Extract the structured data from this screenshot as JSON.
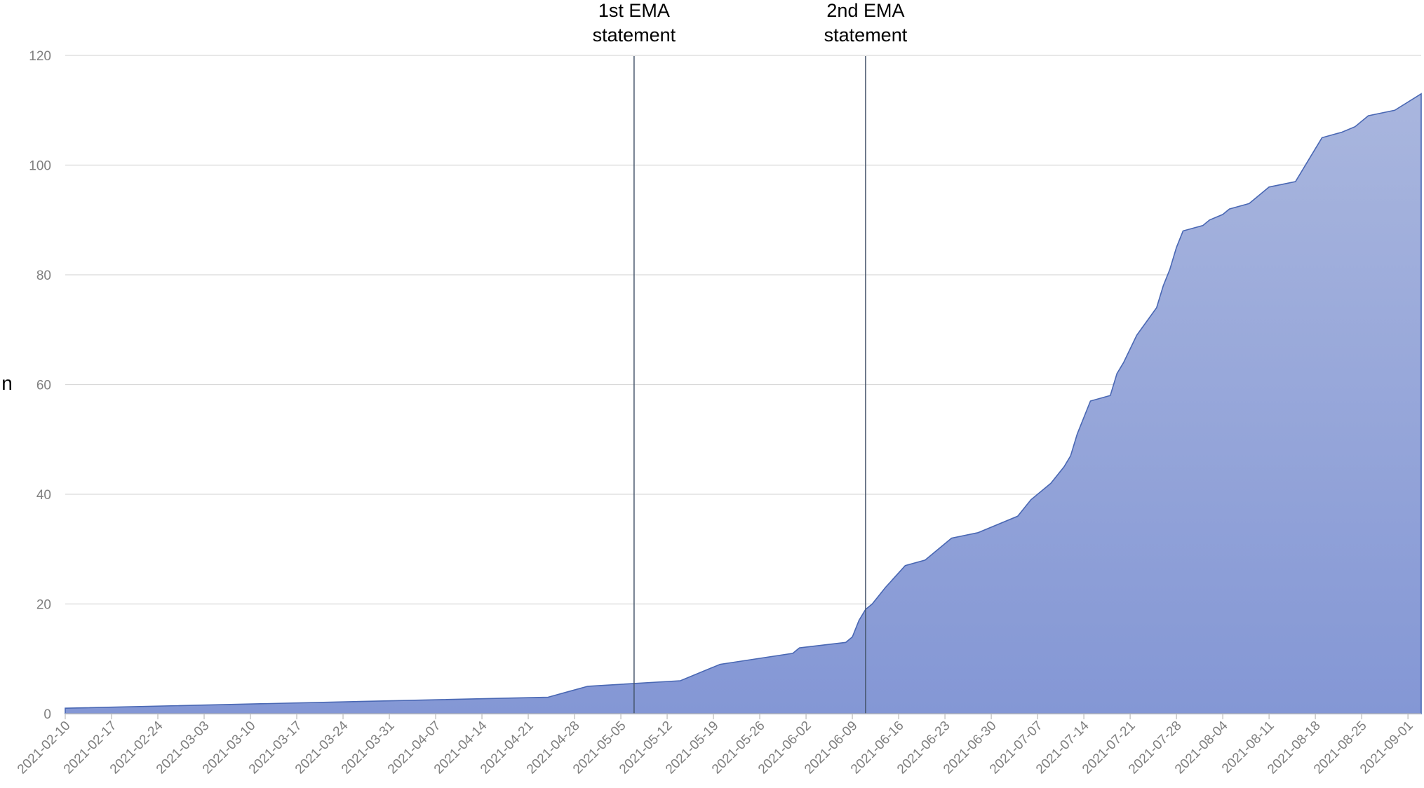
{
  "chart_data": {
    "type": "area",
    "title": "",
    "xlabel": "",
    "ylabel": "n",
    "ylim": [
      0,
      120
    ],
    "yticks": [
      0,
      20,
      40,
      60,
      80,
      100,
      120
    ],
    "grid": true,
    "legend": "none",
    "colors": {
      "fill_top": "#a9b6de",
      "fill_bottom": "#8497d5",
      "line": "#4a68b4",
      "annotation_line": "#44546a",
      "gridline": "#d9d9d9",
      "tick_label": "#7f7f7f"
    },
    "x_ticks": [
      "2021-02-10",
      "2021-02-17",
      "2021-02-24",
      "2021-03-03",
      "2021-03-10",
      "2021-03-17",
      "2021-03-24",
      "2021-03-31",
      "2021-04-07",
      "2021-04-14",
      "2021-04-21",
      "2021-04-28",
      "2021-05-05",
      "2021-05-12",
      "2021-05-19",
      "2021-05-26",
      "2021-06-02",
      "2021-06-09",
      "2021-06-16",
      "2021-06-23",
      "2021-06-30",
      "2021-07-07",
      "2021-07-14",
      "2021-07-21",
      "2021-07-28",
      "2021-08-04",
      "2021-08-11",
      "2021-08-18",
      "2021-08-25",
      "2021-09-01"
    ],
    "x_range": [
      "2021-02-10",
      "2021-09-03"
    ],
    "series": [
      {
        "points": [
          [
            "2021-02-10",
            1
          ],
          [
            "2021-04-24",
            3
          ],
          [
            "2021-04-27",
            4
          ],
          [
            "2021-04-30",
            5
          ],
          [
            "2021-05-14",
            6
          ],
          [
            "2021-05-18",
            8
          ],
          [
            "2021-05-20",
            9
          ],
          [
            "2021-05-31",
            11
          ],
          [
            "2021-06-01",
            12
          ],
          [
            "2021-06-08",
            13
          ],
          [
            "2021-06-09",
            14
          ],
          [
            "2021-06-10",
            17
          ],
          [
            "2021-06-11",
            19
          ],
          [
            "2021-06-12",
            20
          ],
          [
            "2021-06-14",
            23
          ],
          [
            "2021-06-17",
            27
          ],
          [
            "2021-06-20",
            28
          ],
          [
            "2021-06-24",
            32
          ],
          [
            "2021-06-28",
            33
          ],
          [
            "2021-07-04",
            36
          ],
          [
            "2021-07-06",
            39
          ],
          [
            "2021-07-09",
            42
          ],
          [
            "2021-07-11",
            45
          ],
          [
            "2021-07-12",
            47
          ],
          [
            "2021-07-13",
            51
          ],
          [
            "2021-07-15",
            57
          ],
          [
            "2021-07-18",
            58
          ],
          [
            "2021-07-19",
            62
          ],
          [
            "2021-07-20",
            64
          ],
          [
            "2021-07-22",
            69
          ],
          [
            "2021-07-25",
            74
          ],
          [
            "2021-07-26",
            78
          ],
          [
            "2021-07-27",
            81
          ],
          [
            "2021-07-28",
            85
          ],
          [
            "2021-07-29",
            88
          ],
          [
            "2021-08-01",
            89
          ],
          [
            "2021-08-02",
            90
          ],
          [
            "2021-08-04",
            91
          ],
          [
            "2021-08-05",
            92
          ],
          [
            "2021-08-08",
            93
          ],
          [
            "2021-08-11",
            96
          ],
          [
            "2021-08-15",
            97
          ],
          [
            "2021-08-17",
            101
          ],
          [
            "2021-08-19",
            105
          ],
          [
            "2021-08-22",
            106
          ],
          [
            "2021-08-24",
            107
          ],
          [
            "2021-08-26",
            109
          ],
          [
            "2021-08-30",
            110
          ],
          [
            "2021-09-03",
            113
          ]
        ]
      }
    ],
    "annotations": [
      {
        "date": "2021-05-07",
        "label_line1": "1st EMA",
        "label_line2": "statement"
      },
      {
        "date": "2021-06-11",
        "label_line1": "2nd EMA",
        "label_line2": "statement"
      }
    ]
  }
}
